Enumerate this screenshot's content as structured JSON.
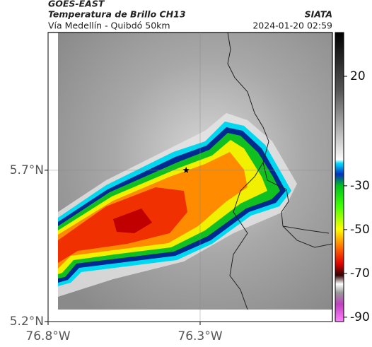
{
  "header": {
    "source": "GOES-EAST",
    "title": "Temperatura de Brillo CH13",
    "subtitle": "Vía Medellín - Quibdó 50km",
    "org": "SIATA",
    "datetime": "2024-01-20 02:59"
  },
  "map": {
    "xlim": [
      -76.8,
      -75.865
    ],
    "ylim": [
      5.2,
      6.155
    ],
    "xticks": [
      {
        "value": -76.8,
        "label": "76.8°W"
      },
      {
        "value": -76.3,
        "label": "76.3°W"
      }
    ],
    "yticks": [
      {
        "value": 5.7,
        "label": "5.7°N"
      },
      {
        "value": 5.2,
        "label": "5.2°N"
      }
    ],
    "grid": true,
    "marker": {
      "lon": -76.346,
      "lat": 5.7
    }
  },
  "colorbar": {
    "lim": [
      -92,
      40
    ],
    "ticks": [
      20,
      -30,
      -50,
      -70,
      -90
    ]
  }
}
